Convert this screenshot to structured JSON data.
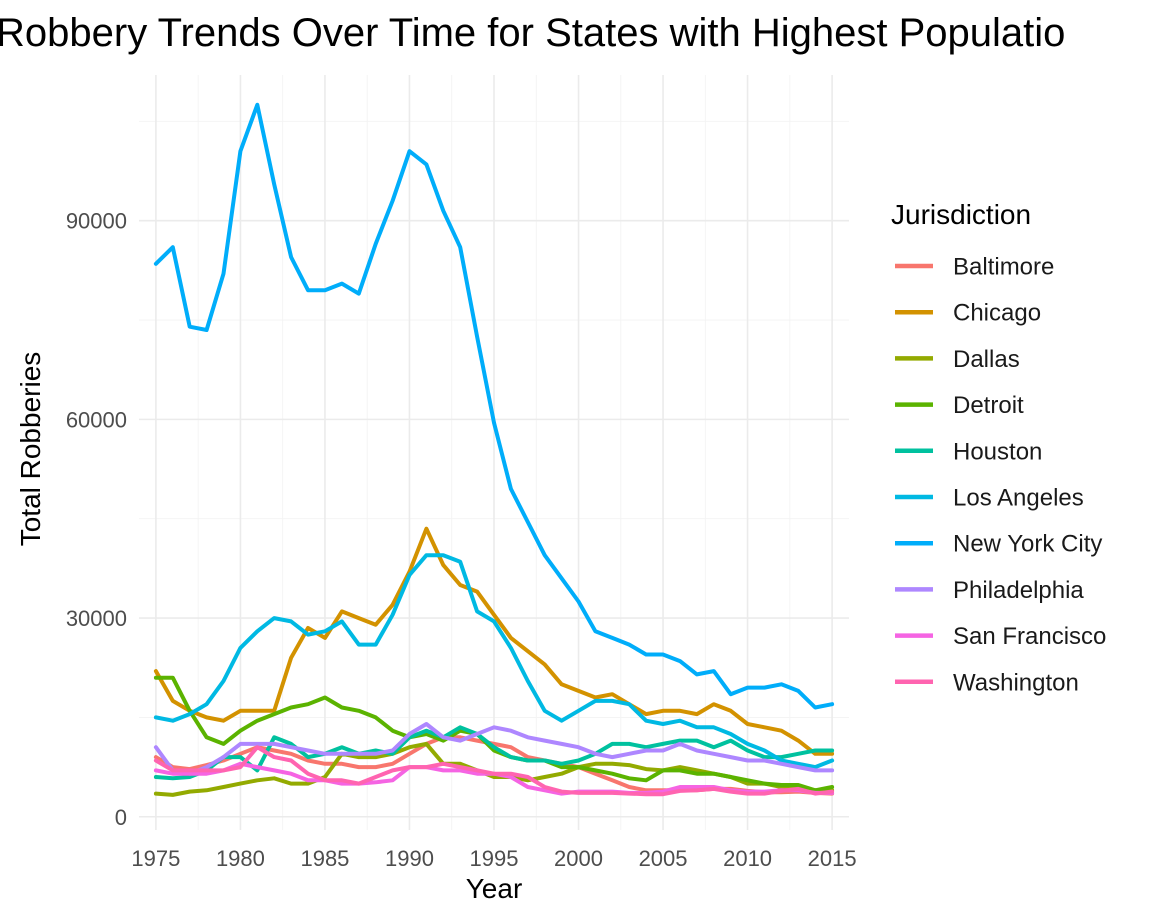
{
  "chart_data": {
    "type": "line",
    "title": "Robbery Trends Over Time for States with Highest Populatio",
    "xlabel": "Year",
    "ylabel": "Total Robberies",
    "xlim": [
      1974,
      2016
    ],
    "ylim": [
      -2000,
      112000
    ],
    "x_ticks": [
      1975,
      1980,
      1985,
      1990,
      1995,
      2000,
      2005,
      2010,
      2015
    ],
    "x_tick_labels": [
      "1975",
      "1980",
      "1985",
      "1990",
      "1995",
      "2000",
      "2005",
      "2010",
      "2015"
    ],
    "y_ticks": [
      0,
      30000,
      60000,
      90000
    ],
    "y_tick_labels": [
      "0",
      "30000",
      "60000",
      "90000"
    ],
    "grid": true,
    "legend": {
      "title": "Jurisdiction",
      "position": "right"
    },
    "x": [
      1975,
      1976,
      1977,
      1978,
      1979,
      1980,
      1981,
      1982,
      1983,
      1984,
      1985,
      1986,
      1987,
      1988,
      1989,
      1990,
      1991,
      1992,
      1993,
      1994,
      1995,
      1996,
      1997,
      1998,
      1999,
      2000,
      2001,
      2002,
      2003,
      2004,
      2005,
      2006,
      2007,
      2008,
      2009,
      2010,
      2011,
      2012,
      2013,
      2014,
      2015
    ],
    "series": [
      {
        "name": "Baltimore",
        "color": "#F8766D",
        "values": [
          9000,
          7500,
          7200,
          7800,
          8500,
          9500,
          10500,
          10000,
          9500,
          8500,
          8000,
          8000,
          7500,
          7500,
          8000,
          9500,
          11000,
          12000,
          12000,
          11500,
          11000,
          10500,
          9000,
          8500,
          8000,
          7500,
          6500,
          5500,
          4500,
          4000,
          4000,
          4000,
          4000,
          4200,
          4200,
          3900,
          3700,
          3700,
          3800,
          3600,
          3500
        ]
      },
      {
        "name": "Chicago",
        "color": "#D39200",
        "values": [
          22000,
          17500,
          16000,
          15000,
          14500,
          16000,
          16000,
          16000,
          24000,
          28500,
          27000,
          31000,
          30000,
          29000,
          32000,
          37000,
          43500,
          38000,
          35000,
          34000,
          30500,
          27000,
          25000,
          23000,
          20000,
          19000,
          18000,
          18500,
          17000,
          15500,
          16000,
          16000,
          15500,
          17000,
          16000,
          14000,
          13500,
          13000,
          11500,
          9500,
          9500
        ]
      },
      {
        "name": "Dallas",
        "color": "#93AA00",
        "values": [
          3500,
          3300,
          3800,
          4000,
          4500,
          5000,
          5500,
          5800,
          5000,
          5000,
          6000,
          9500,
          9000,
          9000,
          9500,
          10500,
          11000,
          8000,
          8000,
          7000,
          6000,
          6000,
          5500,
          6000,
          6500,
          7500,
          8000,
          8000,
          7800,
          7200,
          7000,
          7500,
          7000,
          6500,
          6000,
          5000,
          5000,
          4500,
          4500,
          4000,
          4000
        ]
      },
      {
        "name": "Detroit",
        "color": "#5BB300",
        "values": [
          21000,
          21000,
          16000,
          12000,
          11000,
          13000,
          14500,
          15500,
          16500,
          17000,
          18000,
          16500,
          16000,
          15000,
          13000,
          12000,
          12500,
          11500,
          13000,
          12500,
          10000,
          9000,
          8500,
          8500,
          7500,
          7500,
          7000,
          6500,
          5800,
          5500,
          7000,
          7000,
          6500,
          6500,
          6000,
          5500,
          5000,
          4800,
          4800,
          4000,
          4500
        ]
      },
      {
        "name": "Houston",
        "color": "#00C19F",
        "values": [
          6000,
          5800,
          6000,
          7000,
          9000,
          9000,
          7000,
          12000,
          11000,
          9000,
          9500,
          10500,
          9500,
          10000,
          9500,
          12000,
          13000,
          12000,
          13500,
          12500,
          10500,
          9000,
          8500,
          8500,
          8000,
          8500,
          9500,
          11000,
          11000,
          10500,
          11000,
          11500,
          11500,
          10500,
          11500,
          10000,
          9000,
          9000,
          9500,
          10000,
          10000
        ]
      },
      {
        "name": "Los Angeles",
        "color": "#00B9E3",
        "values": [
          15000,
          14500,
          15500,
          17000,
          20500,
          25500,
          28000,
          30000,
          29500,
          27500,
          28000,
          29500,
          26000,
          26000,
          30500,
          36500,
          39500,
          39500,
          38500,
          31000,
          29500,
          25500,
          20500,
          16000,
          14500,
          16000,
          17500,
          17500,
          17000,
          14500,
          14000,
          14500,
          13500,
          13500,
          12500,
          11000,
          10000,
          8500,
          8000,
          7500,
          8500
        ]
      },
      {
        "name": "New York City",
        "color": "#00ADFA",
        "values": [
          83500,
          86000,
          74000,
          73500,
          82000,
          100500,
          107500,
          95500,
          84500,
          79500,
          79500,
          80500,
          79000,
          86500,
          93000,
          100500,
          98500,
          91500,
          86000,
          72500,
          59500,
          49500,
          44500,
          39500,
          36000,
          32500,
          28000,
          27000,
          26000,
          24500,
          24500,
          23500,
          21500,
          22000,
          18500,
          19500,
          19500,
          20000,
          19000,
          16500,
          17000
        ]
      },
      {
        "name": "Philadelphia",
        "color": "#AE87FF",
        "values": [
          10500,
          7000,
          6500,
          7500,
          9000,
          11000,
          11000,
          11000,
          10500,
          10000,
          9500,
          9500,
          9500,
          9500,
          10000,
          12500,
          14000,
          12000,
          11500,
          12500,
          13500,
          13000,
          12000,
          11500,
          11000,
          10500,
          9500,
          9000,
          9500,
          10000,
          10000,
          11000,
          10000,
          9500,
          9000,
          8500,
          8500,
          8000,
          7500,
          7000,
          7000
        ]
      },
      {
        "name": "San Francisco",
        "color": "#F564E3",
        "values": [
          7000,
          6500,
          6500,
          6500,
          7000,
          8000,
          7500,
          7000,
          6500,
          5500,
          5500,
          5000,
          5000,
          5200,
          5500,
          7500,
          7500,
          7000,
          7000,
          6500,
          6500,
          6000,
          4500,
          4000,
          3500,
          3800,
          3800,
          3800,
          3600,
          3600,
          3800,
          4500,
          4500,
          4500,
          4000,
          3800,
          3800,
          4000,
          4000,
          3600,
          3600
        ]
      },
      {
        "name": "Washington",
        "color": "#FF64B0",
        "values": [
          8500,
          7000,
          7000,
          7000,
          7000,
          7500,
          10500,
          9000,
          8500,
          6500,
          5500,
          5500,
          5000,
          6000,
          7000,
          7500,
          7500,
          8000,
          7500,
          7000,
          6500,
          6500,
          6000,
          4500,
          3800,
          3600,
          3600,
          3600,
          3500,
          3400,
          3400,
          3900,
          4000,
          4200,
          3800,
          3500,
          3500,
          3900,
          4200,
          3500,
          3800
        ]
      }
    ]
  }
}
